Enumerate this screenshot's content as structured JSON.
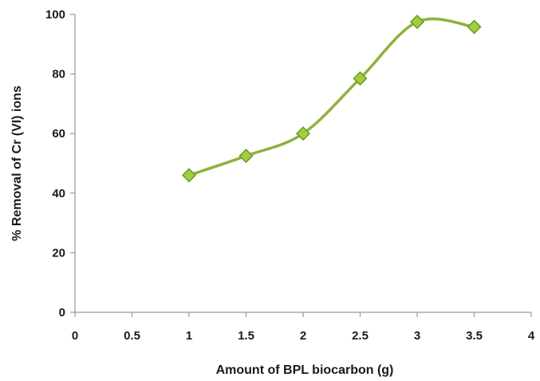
{
  "chart_data": {
    "type": "line",
    "title": "",
    "xlabel": "Amount of BPL biocarbon (g)",
    "ylabel": "% Removal of Cr (VI) ions",
    "xlim": [
      0,
      4
    ],
    "ylim": [
      0,
      100
    ],
    "xticks": [
      0,
      0.5,
      1,
      1.5,
      2,
      2.5,
      3,
      3.5,
      4
    ],
    "xtick_labels": [
      "0",
      "0.5",
      "1",
      "1.5",
      "2",
      "2.5",
      "3",
      "3.5",
      "4"
    ],
    "yticks": [
      0,
      20,
      40,
      60,
      80,
      100
    ],
    "ytick_labels": [
      "0",
      "20",
      "40",
      "60",
      "80",
      "100"
    ],
    "grid": false,
    "legend": "none",
    "series": [
      {
        "x": [
          1,
          1.5,
          2,
          2.5,
          3,
          3.5
        ],
        "y": [
          46,
          52.5,
          60,
          78.5,
          97.5,
          95.8
        ],
        "marker": "diamond",
        "smooth": true,
        "color": "#8db33a",
        "marker_fill": "#9fcf40",
        "marker_edge": "#6f9a28"
      }
    ]
  }
}
